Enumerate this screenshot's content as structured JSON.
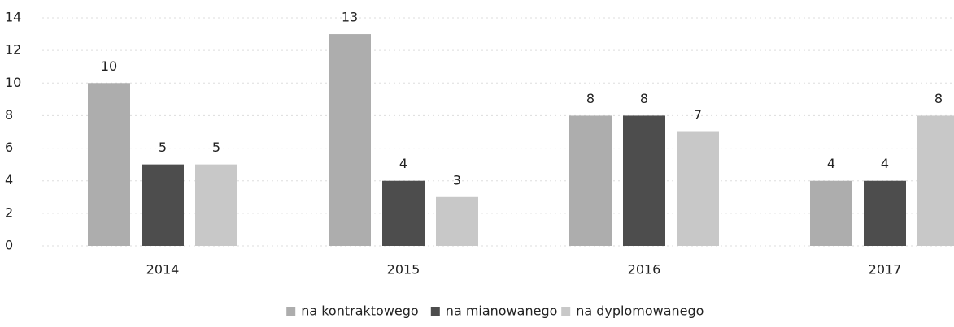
{
  "chart_data": {
    "type": "bar",
    "categories": [
      "2014",
      "2015",
      "2016",
      "2017"
    ],
    "series": [
      {
        "name": "na kontraktowego",
        "color": "#adadad",
        "values": [
          10,
          13,
          8,
          4
        ]
      },
      {
        "name": "na mianowanego",
        "color": "#4d4d4d",
        "values": [
          5,
          4,
          8,
          4
        ]
      },
      {
        "name": "na dyplomowanego",
        "color": "#c8c8c8",
        "values": [
          5,
          3,
          7,
          8
        ]
      }
    ],
    "ylim": [
      0,
      14
    ],
    "yticks": [
      0,
      2,
      4,
      6,
      8,
      10,
      12,
      14
    ],
    "grid": true,
    "legend": "bottom"
  }
}
